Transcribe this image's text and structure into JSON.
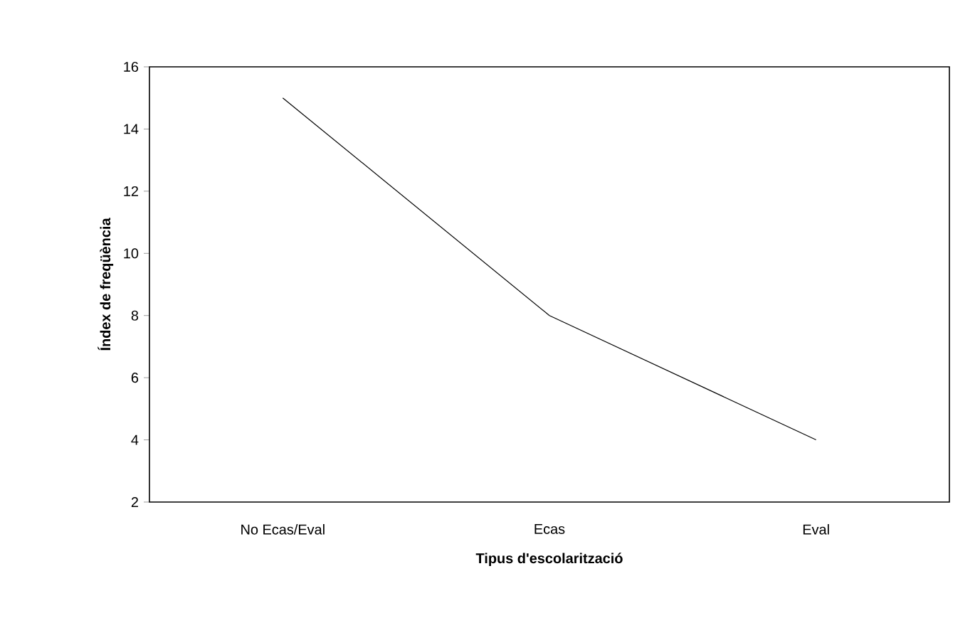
{
  "chart_data": {
    "type": "line",
    "xlabel": "Tipus d'escolarització",
    "ylabel": "Índex de freqüència",
    "categories": [
      "No Ecas/Eval",
      "Ecas",
      "Eval"
    ],
    "series": [
      {
        "color": "#000000",
        "values": [
          15,
          8,
          4
        ]
      }
    ],
    "ylim": [
      2,
      16
    ],
    "yticks": [
      2,
      4,
      6,
      8,
      10,
      12,
      14,
      16
    ],
    "grid": false,
    "marker": "none",
    "line_style": "solid"
  }
}
